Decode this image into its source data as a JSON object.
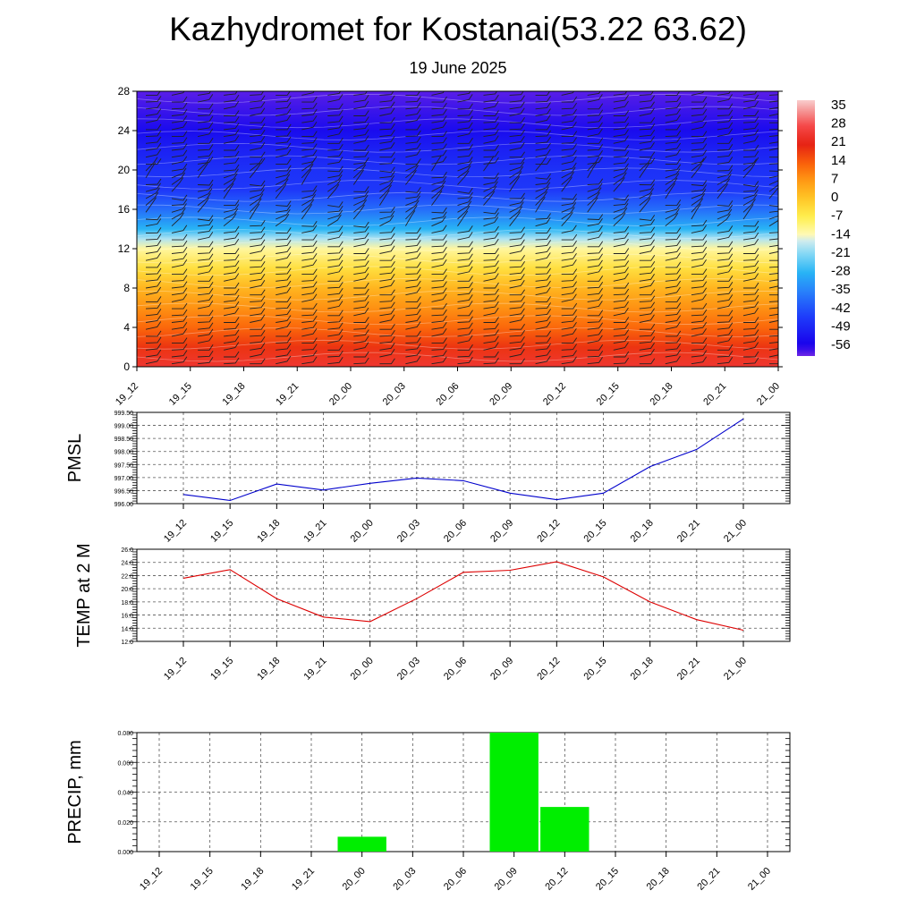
{
  "header": {
    "title": "Kazhydromet for Kostanai(53.22 63.62)",
    "subtitle": "19 June 2025"
  },
  "colors": {
    "pmsl_line": "#0000cc",
    "temp_line": "#dd0000",
    "precip_bar": "#00ee00",
    "grid": "#000000"
  },
  "chart_data": [
    {
      "type": "heatmap",
      "name": "temperature-cross-section",
      "x_ticks": [
        "19_12",
        "19_15",
        "19_18",
        "19_21",
        "20_00",
        "20_03",
        "20_06",
        "20_09",
        "20_12",
        "20_15",
        "20_18",
        "20_21",
        "21_00"
      ],
      "y_ticks": [
        0,
        4,
        8,
        12,
        16,
        20,
        24,
        28
      ],
      "ylim": [
        0,
        28
      ],
      "colorbar_ticks": [
        "35",
        "28",
        "21",
        "14",
        "7",
        "0",
        "-7",
        "-14",
        "-21",
        "-28",
        "-35",
        "-42",
        "-49",
        "-56"
      ],
      "colorbar_range": [
        -60,
        38
      ],
      "temperature_profile": [
        {
          "level": 0,
          "value": 25
        },
        {
          "level": 2,
          "value": 19
        },
        {
          "level": 4,
          "value": 13
        },
        {
          "level": 6,
          "value": 8
        },
        {
          "level": 8,
          "value": 3
        },
        {
          "level": 10,
          "value": -4
        },
        {
          "level": 12,
          "value": -12
        },
        {
          "level": 13,
          "value": -18
        },
        {
          "level": 14,
          "value": -28
        },
        {
          "level": 16,
          "value": -38
        },
        {
          "level": 18,
          "value": -46
        },
        {
          "level": 20,
          "value": -47
        },
        {
          "level": 22,
          "value": -50
        },
        {
          "level": 24,
          "value": -54
        },
        {
          "level": 28,
          "value": -59
        }
      ],
      "wind_barbs": true
    },
    {
      "type": "line",
      "name": "pmsl",
      "ylabel": "PMSL",
      "categories": [
        "19_12",
        "19_15",
        "19_18",
        "19_21",
        "20_00",
        "20_03",
        "20_06",
        "20_09",
        "20_12",
        "20_15",
        "20_18",
        "20_21",
        "21_00"
      ],
      "values": [
        996.35,
        996.12,
        996.75,
        996.52,
        996.78,
        996.98,
        996.88,
        996.4,
        996.15,
        996.4,
        997.42,
        998.08,
        999.25
      ],
      "ylim": [
        996.0,
        999.5
      ],
      "y_ticks": [
        "996.00",
        "996.50",
        "997.00",
        "997.50",
        "998.00",
        "998.50",
        "999.00",
        "999.50"
      ]
    },
    {
      "type": "line",
      "name": "temp-2m",
      "ylabel": "TEMP at 2 M",
      "categories": [
        "19_12",
        "19_15",
        "19_18",
        "19_21",
        "20_00",
        "20_03",
        "20_06",
        "20_09",
        "20_12",
        "20_15",
        "20_18",
        "20_21",
        "21_00"
      ],
      "values": [
        21.6,
        22.9,
        18.5,
        15.7,
        15.0,
        18.5,
        22.5,
        22.8,
        24.1,
        21.8,
        18.0,
        15.3,
        13.7
      ],
      "ylim": [
        12.0,
        26.0
      ],
      "y_ticks": [
        "12.0",
        "14.0",
        "16.0",
        "18.0",
        "20.0",
        "22.0",
        "24.0",
        "26.0"
      ]
    },
    {
      "type": "bar",
      "name": "precip",
      "ylabel": "PRECIP, mm",
      "categories": [
        "19_12",
        "19_15",
        "19_18",
        "19_21",
        "20_00",
        "20_03",
        "20_06",
        "20_09",
        "20_12",
        "20_15",
        "20_18",
        "20_21",
        "21_00"
      ],
      "values": [
        0,
        0,
        0,
        0,
        0.01,
        0,
        0,
        0.08,
        0.03,
        0,
        0,
        0,
        0
      ],
      "ylim": [
        0,
        0.08
      ],
      "y_ticks": [
        "0.000",
        "0.020",
        "0.040",
        "0.060",
        "0.080"
      ]
    }
  ]
}
